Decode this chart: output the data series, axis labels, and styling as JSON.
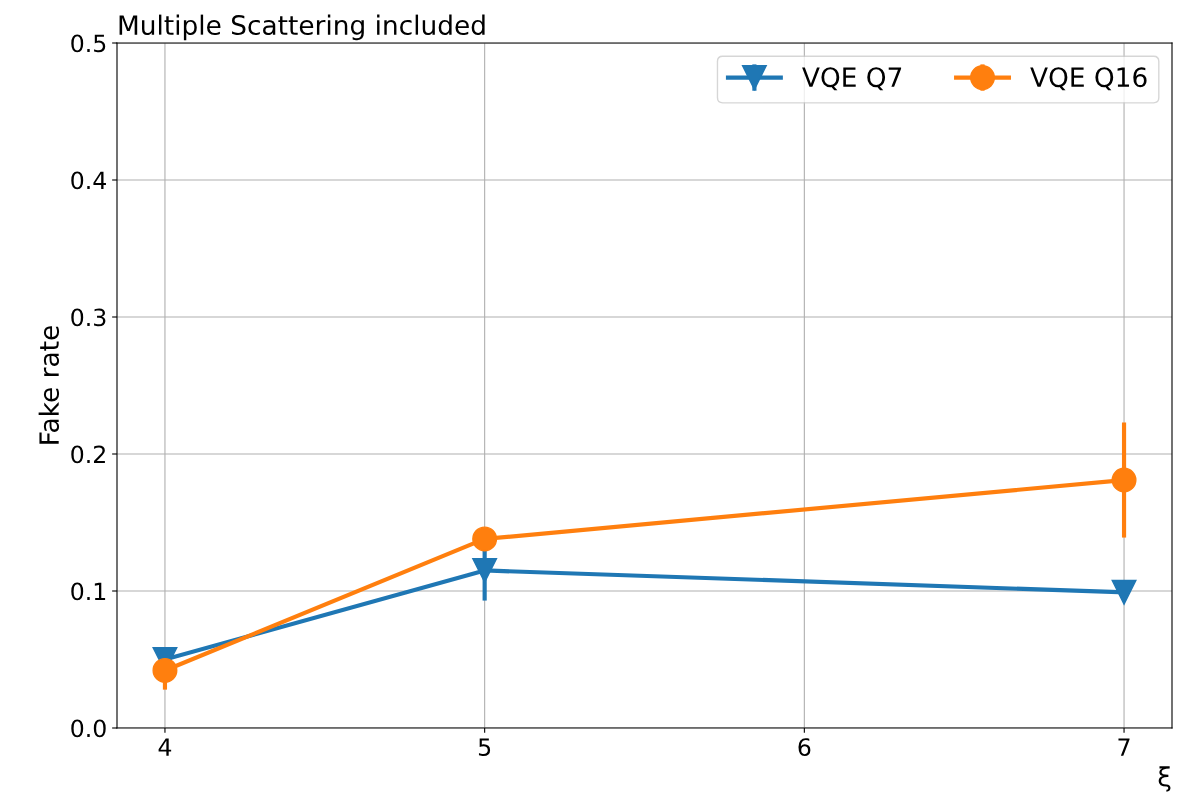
{
  "chart_data": {
    "type": "line",
    "title": "Multiple Scattering included",
    "xlabel": "ξ",
    "ylabel": "Fake rate",
    "x": [
      4,
      5,
      7
    ],
    "series": [
      {
        "name": "VQE Q7",
        "color": "#1f77b4",
        "values": [
          0.05,
          0.115,
          0.099
        ],
        "errors": [
          0.008,
          0.022,
          0.002
        ],
        "marker": "triangle"
      },
      {
        "name": "VQE Q16",
        "color": "#ff7f0e",
        "values": [
          0.042,
          0.138,
          0.181
        ],
        "errors": [
          0.014,
          0.004,
          0.042
        ],
        "marker": "circle"
      }
    ],
    "xlim": [
      3.85,
      7.15
    ],
    "ylim": [
      0,
      0.5
    ],
    "xticks": [
      4,
      5,
      6,
      7
    ],
    "yticks": [
      {
        "value": 0,
        "label": "0.0"
      },
      0.1,
      0.2,
      0.3,
      0.4,
      0.5
    ],
    "grid": true,
    "legend": "top right",
    "line_style": "solid"
  }
}
